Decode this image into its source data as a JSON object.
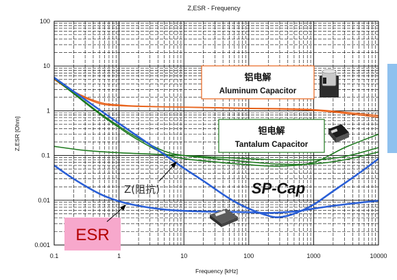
{
  "chart_data": {
    "type": "line",
    "title": "Z,ESR - Frequency",
    "xlabel": "Frequency [kHz]",
    "ylabel": "Z,ESR [Ohm]",
    "x_scale": "log",
    "y_scale": "log",
    "xlim": [
      0.1,
      10000
    ],
    "ylim": [
      0.001,
      100
    ],
    "x_ticks": [
      "0.1",
      "1",
      "10",
      "100",
      "1000",
      "10000"
    ],
    "y_ticks": [
      "100",
      "10",
      "1",
      "0.1",
      "0.01",
      "0.001"
    ],
    "grid": true,
    "series": [
      {
        "group": "aluminum",
        "color": "#e8631c",
        "x": [
          0.1,
          0.2,
          0.5,
          1,
          2,
          5,
          10,
          100,
          1000,
          10000
        ],
        "values": [
          5,
          2.6,
          1.45,
          1.3,
          1.25,
          1.22,
          1.2,
          1.12,
          1.02,
          0.72
        ]
      },
      {
        "group": "aluminum",
        "color": "#e8631c",
        "x": [
          0.1,
          0.2,
          0.5,
          1,
          2,
          5,
          10,
          100,
          1000,
          10000
        ],
        "values": [
          5.2,
          2.7,
          1.55,
          1.35,
          1.27,
          1.23,
          1.21,
          1.14,
          1.06,
          0.78
        ]
      },
      {
        "group": "tantalum",
        "color": "#1e7a1e",
        "x": [
          0.1,
          0.3,
          1,
          3,
          10,
          30,
          100,
          300,
          1000,
          3000,
          10000
        ],
        "values": [
          0.16,
          0.13,
          0.115,
          0.108,
          0.1,
          0.092,
          0.085,
          0.08,
          0.08,
          0.095,
          0.15
        ]
      },
      {
        "group": "tantalum",
        "color": "#1e7a1e",
        "x": [
          0.1,
          0.2,
          0.5,
          1,
          2,
          5,
          10,
          30,
          100,
          300,
          1000,
          3000,
          10000
        ],
        "values": [
          5.3,
          2.4,
          0.85,
          0.42,
          0.22,
          0.11,
          0.085,
          0.072,
          0.062,
          0.058,
          0.07,
          0.15,
          0.3
        ]
      },
      {
        "group": "tantalum",
        "color": "#1e7a1e",
        "x": [
          0.1,
          0.2,
          0.5,
          1,
          2,
          5,
          10,
          30,
          100,
          300,
          1000,
          3000,
          10000
        ],
        "values": [
          5.5,
          2.5,
          0.9,
          0.45,
          0.24,
          0.125,
          0.1,
          0.085,
          0.072,
          0.064,
          0.065,
          0.08,
          0.12
        ]
      },
      {
        "group": "spcap",
        "name": "Z(阻抗)",
        "color": "#2a5fd6",
        "x": [
          0.1,
          0.2,
          0.5,
          1,
          2,
          5,
          10,
          20,
          50,
          100,
          200,
          300,
          500,
          1000,
          2000,
          5000,
          10000
        ],
        "values": [
          5.5,
          2.7,
          1.05,
          0.52,
          0.26,
          0.105,
          0.052,
          0.027,
          0.011,
          0.0065,
          0.0045,
          0.0042,
          0.005,
          0.008,
          0.016,
          0.04,
          0.085
        ]
      },
      {
        "group": "spcap",
        "name": "ESR",
        "color": "#2a5fd6",
        "x": [
          0.1,
          0.2,
          0.5,
          1,
          2,
          5,
          10,
          20,
          50,
          100,
          200,
          500,
          1000,
          2000,
          5000,
          10000
        ],
        "values": [
          0.06,
          0.03,
          0.014,
          0.0095,
          0.0075,
          0.0062,
          0.0058,
          0.0056,
          0.0055,
          0.0054,
          0.0052,
          0.0056,
          0.0065,
          0.0075,
          0.0088,
          0.0098
        ]
      }
    ]
  },
  "labels": {
    "aluminum_zh": "铝电解",
    "aluminum_en": "Aluminum Capacitor",
    "tantalum_zh": "钽电解",
    "tantalum_en": "Tantalum Capacitor",
    "spcap": "SP-Cap",
    "z": "Z(阻抗)",
    "esr": "ESR"
  },
  "colors": {
    "aluminum": "#e8631c",
    "tantalum": "#1e7a1e",
    "spcap": "#2a5fd6",
    "esr_bg": "#f7a8cc",
    "esr_text": "#b30000",
    "side_bar": "#8fc1ee"
  },
  "icons": {
    "aluminum": "aluminum-capacitor-icon",
    "tantalum": "tantalum-capacitor-icon",
    "spcap": "sp-cap-capacitor-icon"
  }
}
